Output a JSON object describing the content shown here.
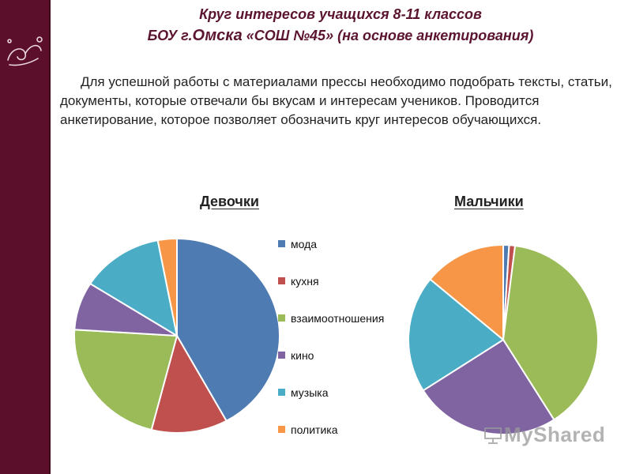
{
  "header": {
    "line1": "Круг интересов учащихся  8-11 классов",
    "line2_prefix": "БОУ г.",
    "line2_city": "Омска",
    "line2_suffix": " «СОШ №45» (на основе анкетирования)"
  },
  "intro": {
    "sentence1": "Для успешной работы с материалами прессы необходимо подобрать тексты, статьи, документы, которые отвечали бы вкусам и интересам учеников.",
    "sentence2_a": "Проводится анкетирование, которое позволяет обозначить круг интересов ",
    "sentence2_b": "обучающихся",
    "sentence2_end": "."
  },
  "watermark": "MyShared",
  "colors": {
    "mode": "#4f7bb3",
    "kitchen": "#c0504d",
    "relations": "#9bbb59",
    "cinema": "#8064a2",
    "music": "#4bacc6",
    "politics": "#f79646",
    "sidebar": "#5c0f2a",
    "title": "#5c1530"
  },
  "chart_data": [
    {
      "type": "pie",
      "title": "Девочки",
      "categories": [
        "мода",
        "кухня",
        "взаимоотношения",
        "кино",
        "музыка",
        "политика"
      ],
      "values": [
        42,
        12,
        22,
        8,
        13,
        3
      ],
      "legend_position": "right"
    },
    {
      "type": "pie",
      "title": "Мальчики",
      "categories": [
        "мода",
        "кухня",
        "взаимоотношения",
        "кино",
        "музыка",
        "политика"
      ],
      "values": [
        1,
        1,
        39,
        25,
        20,
        14
      ]
    }
  ]
}
